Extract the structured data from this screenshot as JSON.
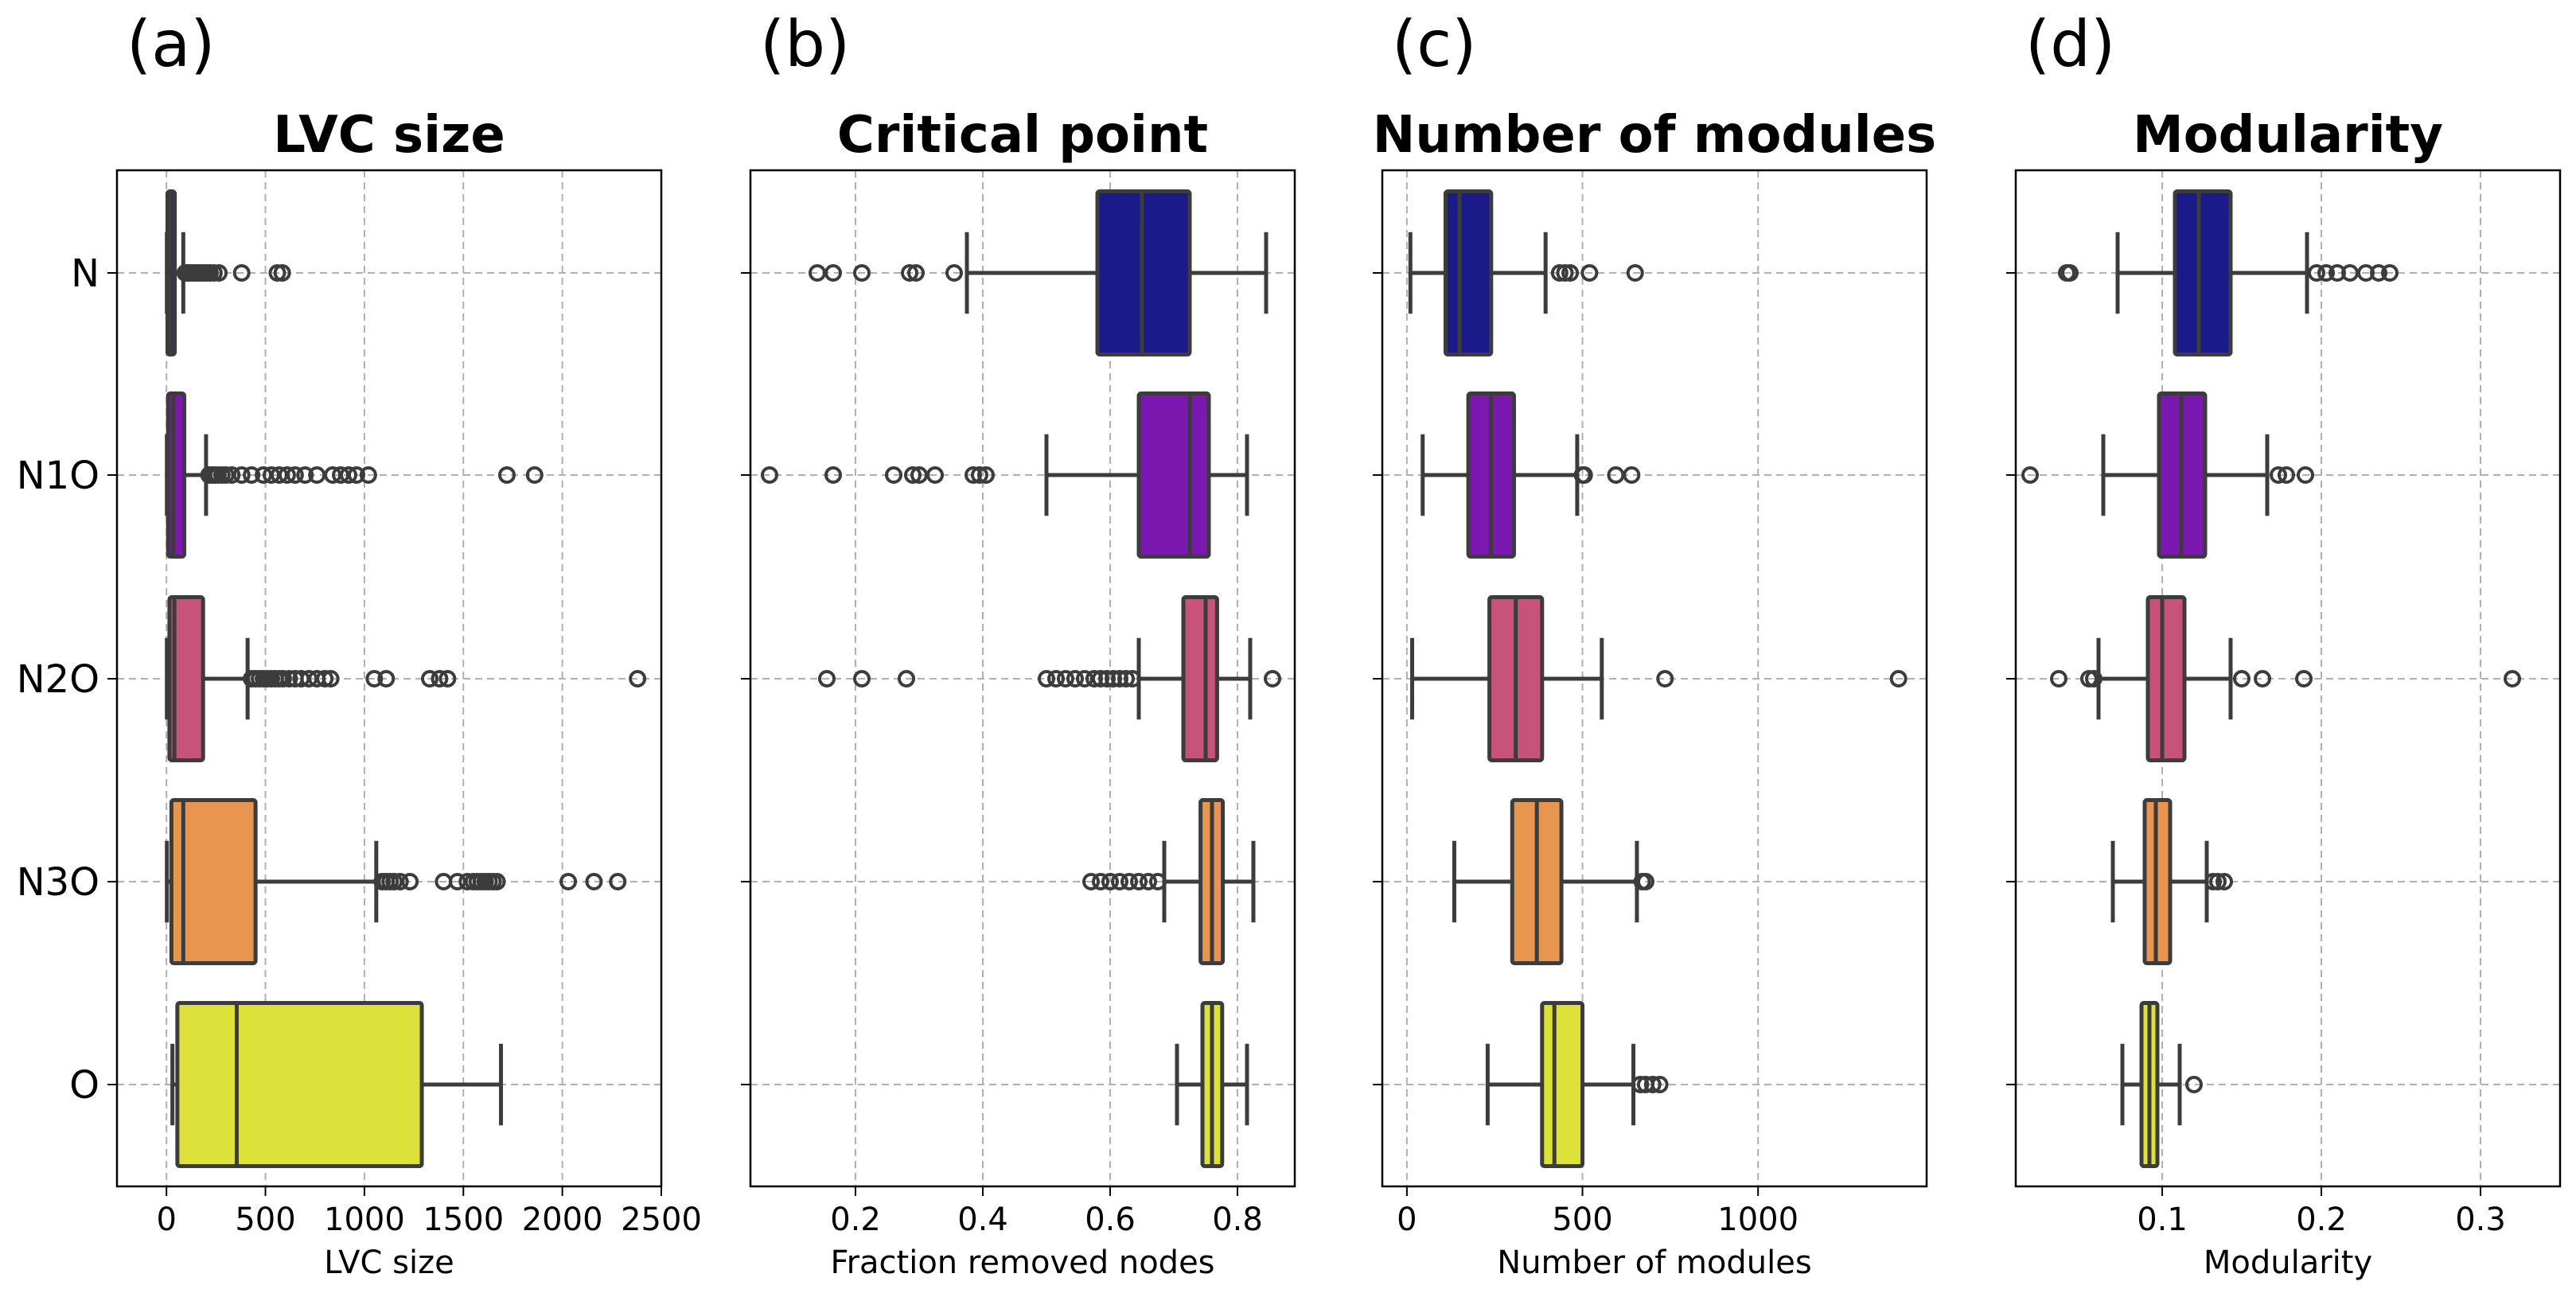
{
  "chart_data": [
    {
      "type": "boxplot",
      "panel_label": "(a)",
      "title": "LVC size",
      "xlabel": "LVC size",
      "xlim": [
        -250,
        2500
      ],
      "xticks": [
        0,
        500,
        1000,
        1500,
        2000,
        2500
      ],
      "xtick_labels": [
        "0",
        "500",
        "1000",
        "1500",
        "2000",
        "2500"
      ],
      "categories": [
        "N",
        "N1O",
        "N2O",
        "N3O",
        "O"
      ],
      "colors": [
        "#1a1a8a",
        "#7a18b0",
        "#c7527a",
        "#e8964f",
        "#dde13a"
      ],
      "boxes": [
        {
          "category": "N",
          "whislo": 2,
          "q1": 5,
          "med": 20,
          "q3": 42,
          "whishi": 85,
          "fliers": [
            95,
            105,
            115,
            125,
            135,
            145,
            155,
            165,
            175,
            190,
            205,
            220,
            240,
            265,
            380,
            560,
            585
          ]
        },
        {
          "category": "N1O",
          "whislo": 2,
          "q1": 8,
          "med": 35,
          "q3": 90,
          "whishi": 200,
          "fliers": [
            215,
            230,
            245,
            260,
            280,
            300,
            330,
            380,
            430,
            490,
            530,
            570,
            610,
            650,
            700,
            760,
            840,
            880,
            920,
            960,
            1020,
            1720,
            1860
          ]
        },
        {
          "category": "N2O",
          "whislo": 2,
          "q1": 15,
          "med": 40,
          "q3": 185,
          "whishi": 410,
          "fliers": [
            430,
            450,
            470,
            490,
            510,
            530,
            550,
            570,
            590,
            620,
            650,
            680,
            720,
            760,
            800,
            830,
            1050,
            1110,
            1330,
            1380,
            1420,
            2380
          ]
        },
        {
          "category": "N3O",
          "whislo": 2,
          "q1": 25,
          "med": 85,
          "q3": 450,
          "whishi": 1060,
          "fliers": [
            1090,
            1110,
            1130,
            1150,
            1180,
            1230,
            1400,
            1470,
            1520,
            1550,
            1570,
            1590,
            1610,
            1630,
            1650,
            1670,
            2030,
            2160,
            2280
          ]
        },
        {
          "category": "O",
          "whislo": 30,
          "q1": 55,
          "med": 355,
          "q3": 1290,
          "whishi": 1690,
          "fliers": []
        }
      ]
    },
    {
      "type": "boxplot",
      "panel_label": "(b)",
      "title": "Critical point",
      "xlabel": "Fraction removed nodes",
      "xlim": [
        0.035,
        0.89
      ],
      "xticks": [
        0.2,
        0.4,
        0.6,
        0.8
      ],
      "xtick_labels": [
        "0.2",
        "0.4",
        "0.6",
        "0.8"
      ],
      "categories": [
        "N",
        "N1O",
        "N2O",
        "N3O",
        "O"
      ],
      "colors": [
        "#1a1a8a",
        "#7a18b0",
        "#c7527a",
        "#e8964f",
        "#dde13a"
      ],
      "boxes": [
        {
          "category": "N",
          "whislo": 0.375,
          "q1": 0.58,
          "med": 0.65,
          "q3": 0.725,
          "whishi": 0.845,
          "fliers": [
            0.14,
            0.165,
            0.21,
            0.285,
            0.295,
            0.355
          ]
        },
        {
          "category": "N1O",
          "whislo": 0.5,
          "q1": 0.645,
          "med": 0.725,
          "q3": 0.755,
          "whishi": 0.815,
          "fliers": [
            0.065,
            0.165,
            0.26,
            0.29,
            0.3,
            0.325,
            0.385,
            0.395,
            0.405
          ]
        },
        {
          "category": "N2O",
          "whislo": 0.645,
          "q1": 0.715,
          "med": 0.75,
          "q3": 0.768,
          "whishi": 0.82,
          "fliers": [
            0.155,
            0.21,
            0.28,
            0.5,
            0.515,
            0.53,
            0.545,
            0.56,
            0.575,
            0.585,
            0.595,
            0.605,
            0.615,
            0.625,
            0.635,
            0.855
          ]
        },
        {
          "category": "N3O",
          "whislo": 0.685,
          "q1": 0.742,
          "med": 0.76,
          "q3": 0.777,
          "whishi": 0.825,
          "fliers": [
            0.57,
            0.585,
            0.6,
            0.615,
            0.63,
            0.645,
            0.66,
            0.675
          ]
        },
        {
          "category": "O",
          "whislo": 0.705,
          "q1": 0.745,
          "med": 0.76,
          "q3": 0.776,
          "whishi": 0.815,
          "fliers": []
        }
      ]
    },
    {
      "type": "boxplot",
      "panel_label": "(c)",
      "title": "Number of modules",
      "xlabel": "Number of modules",
      "xlim": [
        -70,
        1480
      ],
      "xticks": [
        0,
        500,
        1000
      ],
      "xtick_labels": [
        "0",
        "500",
        "1000"
      ],
      "categories": [
        "N",
        "N1O",
        "N2O",
        "N3O",
        "O"
      ],
      "colors": [
        "#1a1a8a",
        "#7a18b0",
        "#c7527a",
        "#e8964f",
        "#dde13a"
      ],
      "boxes": [
        {
          "category": "N",
          "whislo": 10,
          "q1": 110,
          "med": 150,
          "q3": 240,
          "whishi": 395,
          "fliers": [
            435,
            450,
            465,
            520,
            650
          ]
        },
        {
          "category": "N1O",
          "whislo": 45,
          "q1": 175,
          "med": 240,
          "q3": 305,
          "whishi": 485,
          "fliers": [
            500,
            505,
            595,
            640
          ]
        },
        {
          "category": "N2O",
          "whislo": 15,
          "q1": 235,
          "med": 310,
          "q3": 385,
          "whishi": 555,
          "fliers": [
            735,
            1400
          ]
        },
        {
          "category": "N3O",
          "whislo": 135,
          "q1": 300,
          "med": 370,
          "q3": 440,
          "whishi": 655,
          "fliers": [
            670,
            680
          ]
        },
        {
          "category": "O",
          "whislo": 230,
          "q1": 385,
          "med": 420,
          "q3": 500,
          "whishi": 645,
          "fliers": [
            665,
            680,
            700,
            720
          ]
        }
      ]
    },
    {
      "type": "boxplot",
      "panel_label": "(d)",
      "title": "Modularity",
      "xlabel": "Modularity",
      "xlim": [
        0.008,
        0.35
      ],
      "xticks": [
        0.1,
        0.2,
        0.3
      ],
      "xtick_labels": [
        "0.1",
        "0.2",
        "0.3"
      ],
      "categories": [
        "N",
        "N1O",
        "N2O",
        "N3O",
        "O"
      ],
      "colors": [
        "#1a1a8a",
        "#7a18b0",
        "#c7527a",
        "#e8964f",
        "#dde13a"
      ],
      "boxes": [
        {
          "category": "N",
          "whislo": 0.072,
          "q1": 0.108,
          "med": 0.123,
          "q3": 0.143,
          "whishi": 0.191,
          "fliers": [
            0.04,
            0.042,
            0.197,
            0.203,
            0.21,
            0.218,
            0.228,
            0.236,
            0.243
          ]
        },
        {
          "category": "N1O",
          "whislo": 0.063,
          "q1": 0.098,
          "med": 0.112,
          "q3": 0.127,
          "whishi": 0.166,
          "fliers": [
            0.017,
            0.173,
            0.178,
            0.19
          ]
        },
        {
          "category": "N2O",
          "whislo": 0.06,
          "q1": 0.091,
          "med": 0.1,
          "q3": 0.114,
          "whishi": 0.143,
          "fliers": [
            0.035,
            0.054,
            0.057,
            0.15,
            0.163,
            0.189,
            0.32
          ]
        },
        {
          "category": "N3O",
          "whislo": 0.069,
          "q1": 0.089,
          "med": 0.096,
          "q3": 0.105,
          "whishi": 0.128,
          "fliers": [
            0.132,
            0.135,
            0.139
          ]
        },
        {
          "category": "O",
          "whislo": 0.075,
          "q1": 0.087,
          "med": 0.092,
          "q3": 0.097,
          "whishi": 0.111,
          "fliers": [
            0.12
          ]
        }
      ]
    }
  ]
}
